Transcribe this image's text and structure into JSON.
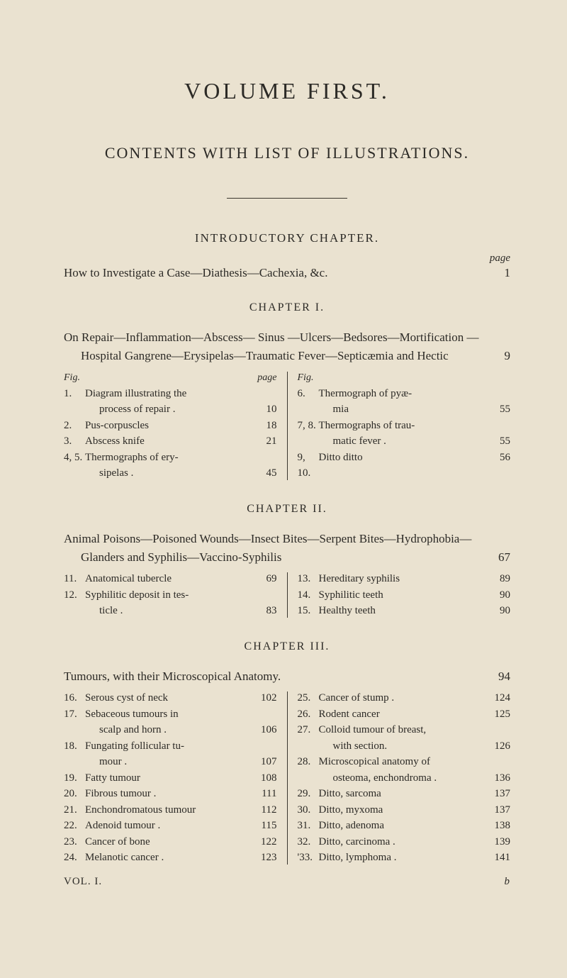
{
  "colors": {
    "background": "#eae2d0",
    "text": "#2c2a26",
    "rule": "#3a362e"
  },
  "typography": {
    "body_family": "Georgia / Times serif",
    "volume_title_size": 32,
    "contents_title_size": 22,
    "section_heading_size": 17,
    "chapter_heading_size": 16,
    "body_size": 17,
    "column_size": 15
  },
  "volumeTitle": "VOLUME FIRST.",
  "contentsTitle": "CONTENTS WITH LIST OF ILLUSTRATIONS.",
  "introductory": {
    "heading": "INTRODUCTORY CHAPTER.",
    "pageLabel": "page",
    "entryText": "How to Investigate a Case—Diathesis—Cachexia, &c.",
    "entryPage": "1"
  },
  "chapter1": {
    "heading": "CHAPTER I.",
    "entryText": "On Repair—Inflammation—Abscess— Sinus —Ulcers—Bedsores—Mortification — Hospital Gangrene—Erysipelas—Traumatic Fever—Septicæmia and Hectic",
    "entryPage": "9",
    "figLabel": "Fig.",
    "pageLabel": "page",
    "left": [
      {
        "num": "1.",
        "text": "Diagram illustrating the",
        "page": ""
      },
      {
        "num": "",
        "text": "process of repair .",
        "page": "10",
        "cont": true
      },
      {
        "num": "2.",
        "text": "Pus-corpuscles",
        "page": "18"
      },
      {
        "num": "3.",
        "text": "Abscess knife",
        "page": "21"
      },
      {
        "num": "4, 5.",
        "text": "Thermographs of ery-",
        "page": ""
      },
      {
        "num": "",
        "text": "sipelas .",
        "page": "45",
        "cont": true
      }
    ],
    "right": [
      {
        "num": "6.",
        "text": "Thermograph of pyæ-",
        "page": ""
      },
      {
        "num": "",
        "text": "mia",
        "page": "55",
        "cont": true
      },
      {
        "num": "7, 8.",
        "text": "Thermographs of trau-",
        "page": ""
      },
      {
        "num": "",
        "text": "matic fever .",
        "page": "55",
        "cont": true
      },
      {
        "num": "9, 10.",
        "text": "Ditto ditto",
        "page": "56"
      }
    ]
  },
  "chapter2": {
    "heading": "CHAPTER II.",
    "entryText": "Animal Poisons—Poisoned Wounds—Insect Bites—Serpent Bites—Hydrophobia—Glanders and Syphilis—Vaccino-Syphilis",
    "entryPage": "67",
    "left": [
      {
        "num": "11.",
        "text": "Anatomical tubercle",
        "page": "69"
      },
      {
        "num": "12.",
        "text": "Syphilitic deposit in tes-",
        "page": ""
      },
      {
        "num": "",
        "text": "ticle .",
        "page": "83",
        "cont": true
      }
    ],
    "right": [
      {
        "num": "13.",
        "text": "Hereditary syphilis",
        "page": "89"
      },
      {
        "num": "14.",
        "text": "Syphilitic teeth",
        "page": "90"
      },
      {
        "num": "15.",
        "text": "Healthy teeth",
        "page": "90"
      }
    ]
  },
  "chapter3": {
    "heading": "CHAPTER III.",
    "entryText": "Tumours, with their Microscopical Anatomy.",
    "entryPage": "94",
    "left": [
      {
        "num": "16.",
        "text": "Serous cyst of neck",
        "page": "102"
      },
      {
        "num": "17.",
        "text": "Sebaceous tumours in",
        "page": ""
      },
      {
        "num": "",
        "text": "scalp and horn .",
        "page": "106",
        "cont": true
      },
      {
        "num": "18.",
        "text": "Fungating follicular tu-",
        "page": ""
      },
      {
        "num": "",
        "text": "mour .",
        "page": "107",
        "cont": true
      },
      {
        "num": "19.",
        "text": "Fatty tumour",
        "page": "108"
      },
      {
        "num": "20.",
        "text": "Fibrous tumour .",
        "page": "111"
      },
      {
        "num": "21.",
        "text": "Enchondromatous tumour",
        "page": "112"
      },
      {
        "num": "22.",
        "text": "Adenoid tumour .",
        "page": "115"
      },
      {
        "num": "23.",
        "text": "Cancer of bone",
        "page": "122"
      },
      {
        "num": "24.",
        "text": "Melanotic cancer .",
        "page": "123"
      }
    ],
    "right": [
      {
        "num": "25.",
        "text": "Cancer of stump .",
        "page": "124"
      },
      {
        "num": "26.",
        "text": "Rodent cancer",
        "page": "125"
      },
      {
        "num": "27.",
        "text": "Colloid tumour of breast,",
        "page": ""
      },
      {
        "num": "",
        "text": "with section.",
        "page": "126",
        "cont": true
      },
      {
        "num": "28.",
        "text": "Microscopical anatomy of",
        "page": ""
      },
      {
        "num": "",
        "text": "osteoma, enchondroma .",
        "page": "136",
        "cont": true
      },
      {
        "num": "29.",
        "text": "Ditto, sarcoma",
        "page": "137"
      },
      {
        "num": "30.",
        "text": "Ditto, myxoma",
        "page": "137"
      },
      {
        "num": "31.",
        "text": "Ditto, adenoma",
        "page": "138"
      },
      {
        "num": "32.",
        "text": "Ditto, carcinoma .",
        "page": "139"
      },
      {
        "num": "'33.",
        "text": "Ditto, lymphoma .",
        "page": "141"
      }
    ]
  },
  "footer": {
    "left": "VOL. I.",
    "right": "b"
  }
}
